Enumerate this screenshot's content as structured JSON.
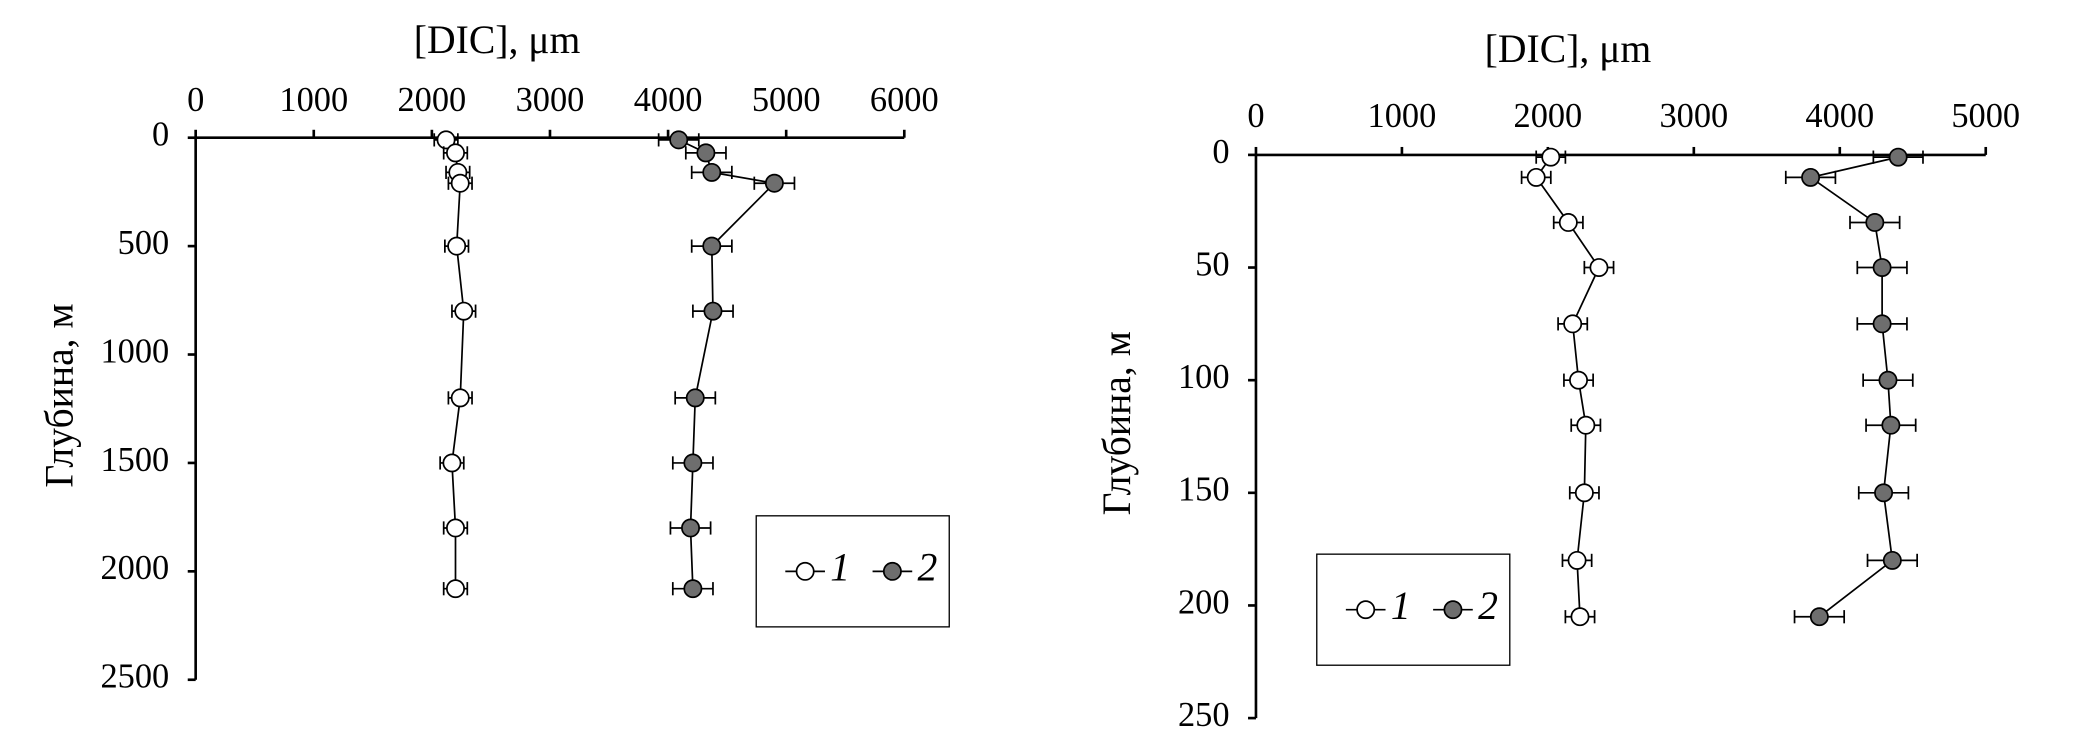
{
  "chart_data": [
    {
      "type": "line",
      "title": "[DIC], μm",
      "y_label": "Глубина, м",
      "xlim": [
        0,
        6000
      ],
      "xticks": [
        0,
        1000,
        2000,
        3000,
        4000,
        5000,
        6000
      ],
      "ylim": [
        0,
        2500
      ],
      "yticks": [
        0,
        500,
        1000,
        1500,
        2000,
        2500
      ],
      "y_inverted": true,
      "legend": "lower right",
      "series": [
        {
          "name": "1",
          "color": "#ffffff",
          "y": [
            10,
            70,
            160,
            210,
            500,
            800,
            1200,
            1500,
            1800,
            2080
          ],
          "values": [
            2120,
            2200,
            2220,
            2240,
            2210,
            2270,
            2240,
            2170,
            2200,
            2200
          ],
          "errors": [
            100,
            100,
            100,
            100,
            100,
            100,
            100,
            100,
            100,
            100
          ]
        },
        {
          "name": "2",
          "color": "#6e6e6e",
          "y": [
            10,
            70,
            160,
            210,
            500,
            800,
            1200,
            1500,
            1800,
            2080
          ],
          "values": [
            4090,
            4320,
            4370,
            4900,
            4370,
            4380,
            4230,
            4210,
            4190,
            4210
          ],
          "errors": [
            170,
            170,
            170,
            170,
            170,
            170,
            170,
            170,
            170,
            170
          ]
        }
      ]
    },
    {
      "type": "line",
      "title": "[DIC], μm",
      "y_label": "Глубина, м",
      "xlim": [
        0,
        5000
      ],
      "xticks": [
        0,
        1000,
        2000,
        3000,
        4000,
        5000
      ],
      "ylim": [
        0,
        250
      ],
      "yticks": [
        0,
        50,
        100,
        150,
        200,
        250
      ],
      "y_inverted": true,
      "legend": "lower left",
      "series": [
        {
          "name": "1",
          "color": "#ffffff",
          "y": [
            1,
            10,
            30,
            50,
            75,
            100,
            120,
            150,
            180,
            205
          ],
          "values": [
            2020,
            1920,
            2140,
            2350,
            2170,
            2210,
            2260,
            2250,
            2200,
            2220
          ],
          "errors": [
            100,
            100,
            100,
            100,
            100,
            100,
            100,
            100,
            100,
            100
          ]
        },
        {
          "name": "2",
          "color": "#6e6e6e",
          "y": [
            1,
            10,
            30,
            50,
            75,
            100,
            120,
            150,
            180,
            205
          ],
          "values": [
            4400,
            3800,
            4240,
            4290,
            4290,
            4330,
            4350,
            4300,
            4360,
            3860
          ],
          "errors": [
            170,
            170,
            170,
            170,
            170,
            170,
            170,
            170,
            170,
            170
          ]
        }
      ]
    }
  ]
}
